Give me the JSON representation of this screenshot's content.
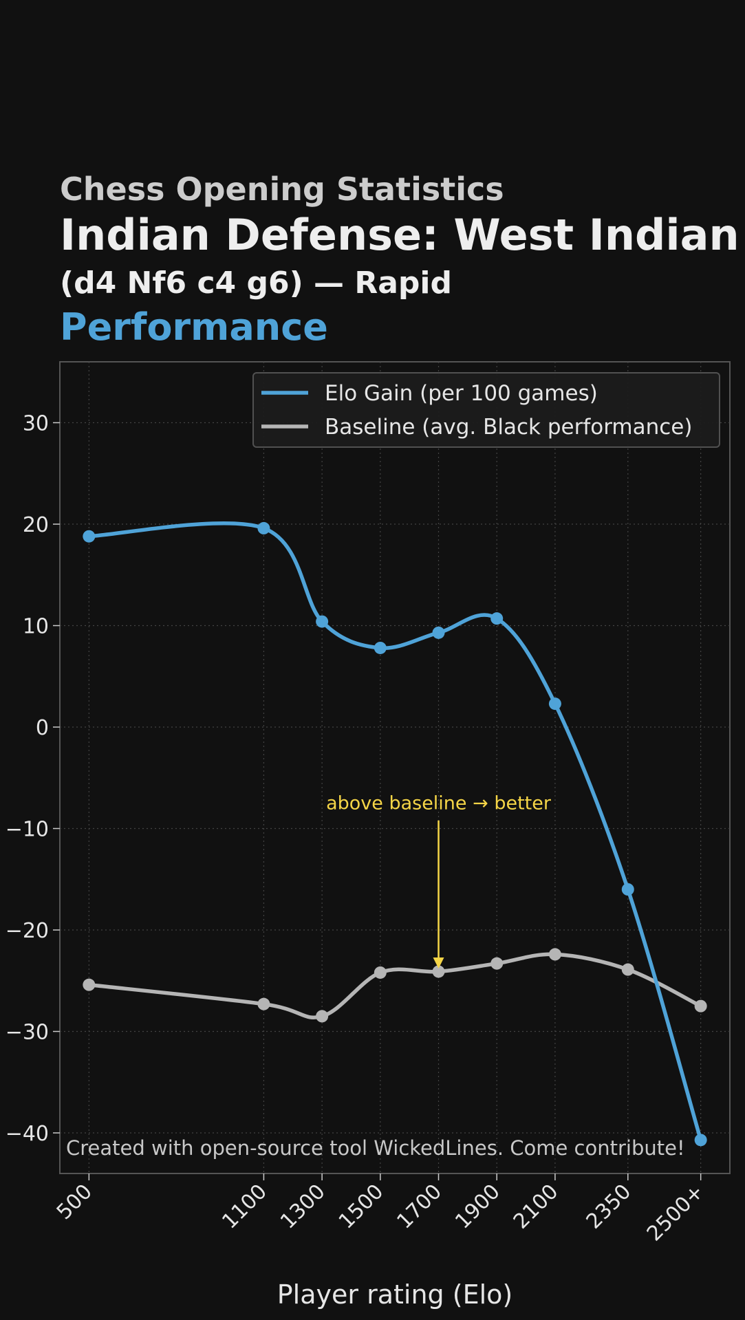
{
  "title": {
    "kicker": "Chess Opening Statistics",
    "main": "Indian Defense: West Indian",
    "sub": "(d4 Nf6 c4 g6) — Rapid",
    "accent": "Performance"
  },
  "colors": {
    "background": "#111111",
    "elo_series": "#4fa3d8",
    "baseline_series": "#b5b5b5",
    "annotation": "#f5d547",
    "accent_title": "#4fa3d8"
  },
  "chart_data": {
    "type": "line",
    "categories": [
      "500",
      "1100",
      "1300",
      "1500",
      "1700",
      "1900",
      "2100",
      "2350",
      "2500+"
    ],
    "x": [
      500,
      1100,
      1300,
      1500,
      1700,
      1900,
      2100,
      2350,
      2600
    ],
    "xlim": [
      400,
      2700
    ],
    "ylim": [
      -44,
      36
    ],
    "yticks": [
      30,
      20,
      10,
      0,
      -10,
      -20,
      -30,
      -40
    ],
    "ytick_labels": [
      "30",
      "20",
      "10",
      "0",
      "−10",
      "−20",
      "−30",
      "−40"
    ],
    "xlabel": "Player rating (Elo)",
    "ylabel": "",
    "grid": true,
    "legend_position": "top-right",
    "series": [
      {
        "name": "Elo Gain (per 100 games)",
        "values": [
          18.8,
          19.6,
          10.4,
          7.8,
          9.3,
          10.7,
          2.3,
          -16.0,
          -40.7
        ]
      },
      {
        "name": "Baseline (avg. Black performance)",
        "values": [
          -25.4,
          -27.3,
          -28.5,
          -24.2,
          -24.1,
          -23.3,
          -22.4,
          -23.9,
          -27.5
        ]
      }
    ],
    "annotation": {
      "text": "above baseline → better",
      "x": 1700,
      "y_text": -7.5,
      "y_arrow_start": -9.2,
      "y_arrow_end": -23.8
    },
    "watermark": "Created with open-source tool WickedLines. Come contribute!"
  }
}
